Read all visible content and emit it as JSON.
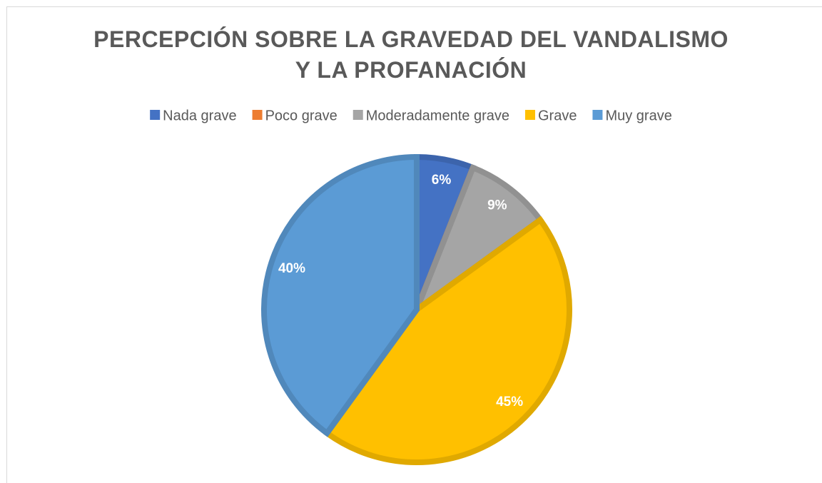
{
  "chart_data": {
    "type": "pie",
    "title": "PERCEPCIÓN SOBRE LA GRAVEDAD DEL VANDALISMO Y LA PROFANACIÓN",
    "categories": [
      "Nada grave",
      "Poco grave",
      "Moderadamente grave",
      "Grave",
      "Muy grave"
    ],
    "values": [
      6,
      0,
      9,
      45,
      40
    ],
    "value_labels": [
      "6%",
      null,
      "9%",
      "45%",
      "40%"
    ],
    "colors": [
      "#4472c4",
      "#ed7d31",
      "#a5a5a5",
      "#ffc000",
      "#5b9bd5"
    ],
    "legend": "top"
  }
}
